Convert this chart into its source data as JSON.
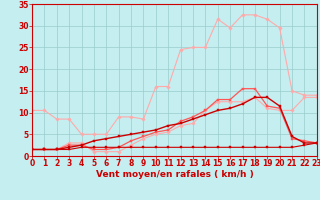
{
  "x": [
    0,
    1,
    2,
    3,
    4,
    5,
    6,
    7,
    8,
    9,
    10,
    11,
    12,
    13,
    14,
    15,
    16,
    17,
    18,
    19,
    20,
    21,
    22,
    23
  ],
  "series": [
    {
      "name": "line1_lightest",
      "color": "#ffaaaa",
      "lw": 0.8,
      "marker": "D",
      "ms": 1.8,
      "y": [
        10.5,
        10.5,
        8.5,
        8.5,
        5.0,
        5.0,
        5.0,
        9.0,
        9.0,
        8.5,
        16.0,
        16.0,
        24.5,
        25.0,
        25.0,
        31.5,
        29.5,
        32.5,
        32.5,
        31.5,
        29.5,
        15.0,
        14.0,
        14.0
      ]
    },
    {
      "name": "line2_light",
      "color": "#ffaaaa",
      "lw": 0.8,
      "marker": "D",
      "ms": 1.8,
      "y": [
        1.5,
        1.5,
        1.5,
        3.0,
        3.0,
        1.0,
        1.0,
        1.0,
        2.5,
        4.0,
        5.0,
        5.5,
        7.0,
        7.5,
        10.5,
        12.5,
        12.5,
        12.5,
        13.5,
        11.0,
        10.5,
        10.5,
        13.5,
        13.5
      ]
    },
    {
      "name": "line3_medium",
      "color": "#ff5555",
      "lw": 0.9,
      "marker": "s",
      "ms": 1.8,
      "y": [
        1.5,
        1.5,
        1.5,
        2.5,
        2.5,
        1.5,
        1.5,
        2.0,
        3.5,
        4.5,
        5.5,
        6.0,
        8.0,
        9.0,
        10.5,
        13.0,
        13.0,
        15.5,
        15.5,
        11.5,
        11.0,
        4.0,
        3.5,
        3.0
      ]
    },
    {
      "name": "line4_dark",
      "color": "#cc0000",
      "lw": 1.0,
      "marker": "s",
      "ms": 1.8,
      "y": [
        1.5,
        1.5,
        1.5,
        2.0,
        2.5,
        3.5,
        4.0,
        4.5,
        5.0,
        5.5,
        6.0,
        7.0,
        7.5,
        8.5,
        9.5,
        10.5,
        11.0,
        12.0,
        13.5,
        13.5,
        11.5,
        4.5,
        3.0,
        3.0
      ]
    },
    {
      "name": "line5_flat",
      "color": "#cc0000",
      "lw": 0.8,
      "marker": "s",
      "ms": 1.5,
      "y": [
        1.5,
        1.5,
        1.5,
        1.5,
        2.0,
        2.0,
        2.0,
        2.0,
        2.0,
        2.0,
        2.0,
        2.0,
        2.0,
        2.0,
        2.0,
        2.0,
        2.0,
        2.0,
        2.0,
        2.0,
        2.0,
        2.0,
        2.5,
        3.0
      ]
    }
  ],
  "xlabel": "Vent moyen/en rafales ( km/h )",
  "xlim": [
    0,
    23
  ],
  "ylim": [
    0,
    35
  ],
  "xticks": [
    0,
    1,
    2,
    3,
    4,
    5,
    6,
    7,
    8,
    9,
    10,
    11,
    12,
    13,
    14,
    15,
    16,
    17,
    18,
    19,
    20,
    21,
    22,
    23
  ],
  "yticks": [
    0,
    5,
    10,
    15,
    20,
    25,
    30,
    35
  ],
  "bg_color": "#c5eef0",
  "grid_color": "#99cccc",
  "axis_color": "#cc0000",
  "xlabel_fontsize": 6.5,
  "tick_fontsize": 5.5
}
